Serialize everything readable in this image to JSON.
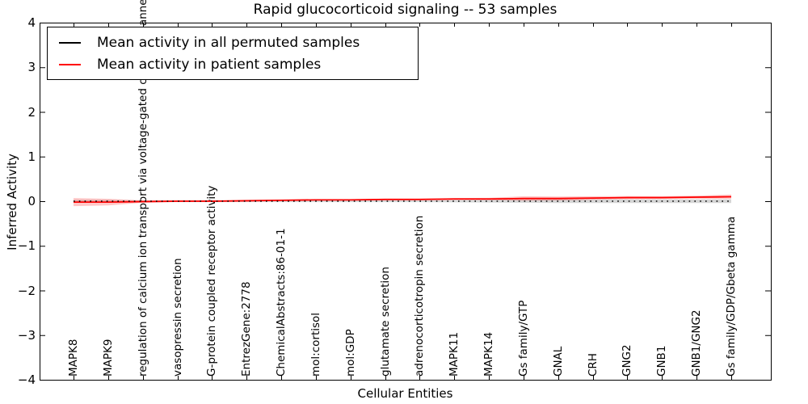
{
  "chart_data": {
    "type": "line",
    "title": "Rapid glucocorticoid signaling -- 53 samples",
    "xlabel": "Cellular Entities",
    "ylabel": "Inferred Activity",
    "ylim": [
      -4,
      4
    ],
    "yticks": [
      4,
      3,
      2,
      1,
      0,
      -1,
      -2,
      -3,
      -4
    ],
    "ytick_labels": [
      "4",
      "3",
      "2",
      "1",
      "0",
      "−1",
      "−2",
      "−3",
      "−4"
    ],
    "grid": false,
    "legend_position": "upper left",
    "categories": [
      "MAPK8",
      "MAPK9",
      "regulation of calcium ion transport via voltage-gated calcium channel activity",
      "vasopressin secretion",
      "G-protein coupled receptor activity",
      "EntrezGene:2778",
      "ChemicalAbstracts:86-01-1",
      "mol:cortisol",
      "mol:GDP",
      "glutamate secretion",
      "adrenocorticotropin secretion",
      "MAPK11",
      "MAPK14",
      "Gs family/GTP",
      "GNAL",
      "CRH",
      "GNG2",
      "GNB1",
      "GNB1/GNG2",
      "Gs family/GDP/Gbeta gamma"
    ],
    "series": [
      {
        "name": "Mean activity in all permuted samples",
        "color": "#000000",
        "line_style": "dotted",
        "values": [
          0,
          0,
          0,
          0,
          0,
          0,
          0,
          0,
          0,
          0,
          0,
          0,
          0,
          0,
          0,
          0,
          0,
          0,
          0,
          0
        ],
        "band_halfwidth": [
          0.03,
          0.03,
          0.02,
          0.02,
          0.02,
          0.02,
          0.02,
          0.02,
          0.02,
          0.02,
          0.02,
          0.025,
          0.03,
          0.035,
          0.04,
          0.04,
          0.04,
          0.04,
          0.04,
          0.04
        ],
        "band_color": "rgba(120,120,120,0.30)"
      },
      {
        "name": "Mean activity in patient samples",
        "color": "#ff0000",
        "line_style": "solid",
        "values": [
          -0.02,
          -0.02,
          -0.01,
          0,
          0,
          0.01,
          0.02,
          0.03,
          0.03,
          0.04,
          0.04,
          0.05,
          0.05,
          0.06,
          0.06,
          0.07,
          0.08,
          0.08,
          0.09,
          0.1
        ],
        "band_halfwidth": [
          0.09,
          0.075,
          0.025,
          0.015,
          0.015,
          0.015,
          0.015,
          0.015,
          0.015,
          0.015,
          0.015,
          0.02,
          0.025,
          0.05,
          0.045,
          0.04,
          0.035,
          0.03,
          0.035,
          0.05
        ],
        "band_color": "rgba(255,0,0,0.22)"
      }
    ]
  }
}
